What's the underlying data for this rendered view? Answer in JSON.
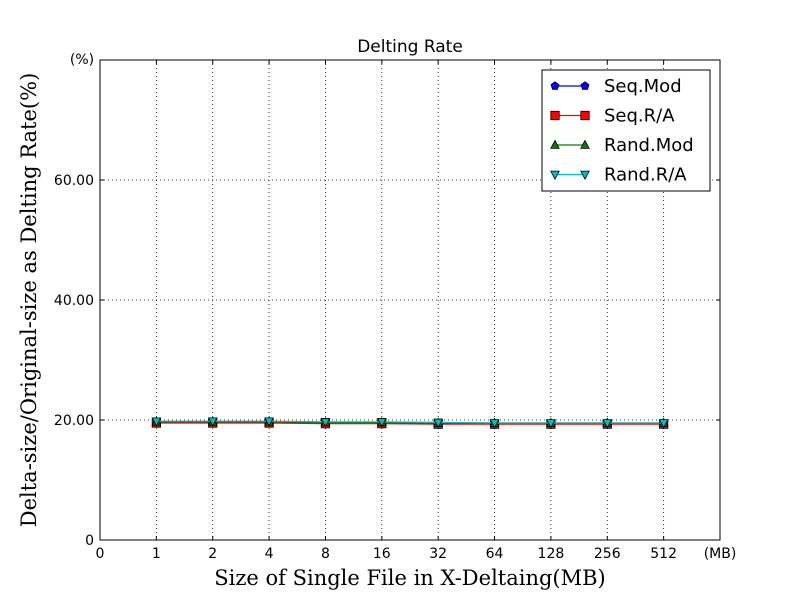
{
  "chart_data": {
    "type": "line",
    "title": "Delting Rate",
    "xlabel": "Size of Single File in X-Deltaing(MB)",
    "ylabel": "Delta-size/Original-size as Delting Rate(%)",
    "x_unit_label": "(MB)",
    "y_unit_label": "(%)",
    "x_tick_labels": [
      "0",
      "1",
      "2",
      "4",
      "8",
      "16",
      "32",
      "64",
      "128",
      "256",
      "512"
    ],
    "categories": [
      "1",
      "2",
      "4",
      "8",
      "16",
      "32",
      "64",
      "128",
      "256",
      "512"
    ],
    "y_tick_labels": [
      "0",
      "20.00",
      "40.00",
      "60.00"
    ],
    "y_ticks": [
      0,
      20,
      40,
      60
    ],
    "ylim": [
      0,
      80
    ],
    "x_index_range": [
      0,
      11
    ],
    "grid": true,
    "legend_position": "top-right",
    "series": [
      {
        "name": "Seq.Mod",
        "color": "#0000ff",
        "marker": "pentagon",
        "values": [
          19.6,
          19.6,
          19.6,
          19.5,
          19.5,
          19.4,
          19.4,
          19.4,
          19.4,
          19.4
        ]
      },
      {
        "name": "Seq.R/A",
        "color": "#ff0000",
        "marker": "square",
        "values": [
          19.5,
          19.5,
          19.5,
          19.4,
          19.4,
          19.3,
          19.3,
          19.3,
          19.3,
          19.3
        ]
      },
      {
        "name": "Rand.Mod",
        "color": "#008000",
        "marker": "triangle-up",
        "values": [
          19.7,
          19.7,
          19.7,
          19.6,
          19.6,
          19.5,
          19.5,
          19.5,
          19.5,
          19.5
        ]
      },
      {
        "name": "Rand.R/A",
        "color": "#00bfbf",
        "marker": "triangle-down",
        "values": [
          19.8,
          19.8,
          19.8,
          19.7,
          19.7,
          19.6,
          19.5,
          19.5,
          19.5,
          19.5
        ]
      }
    ]
  }
}
